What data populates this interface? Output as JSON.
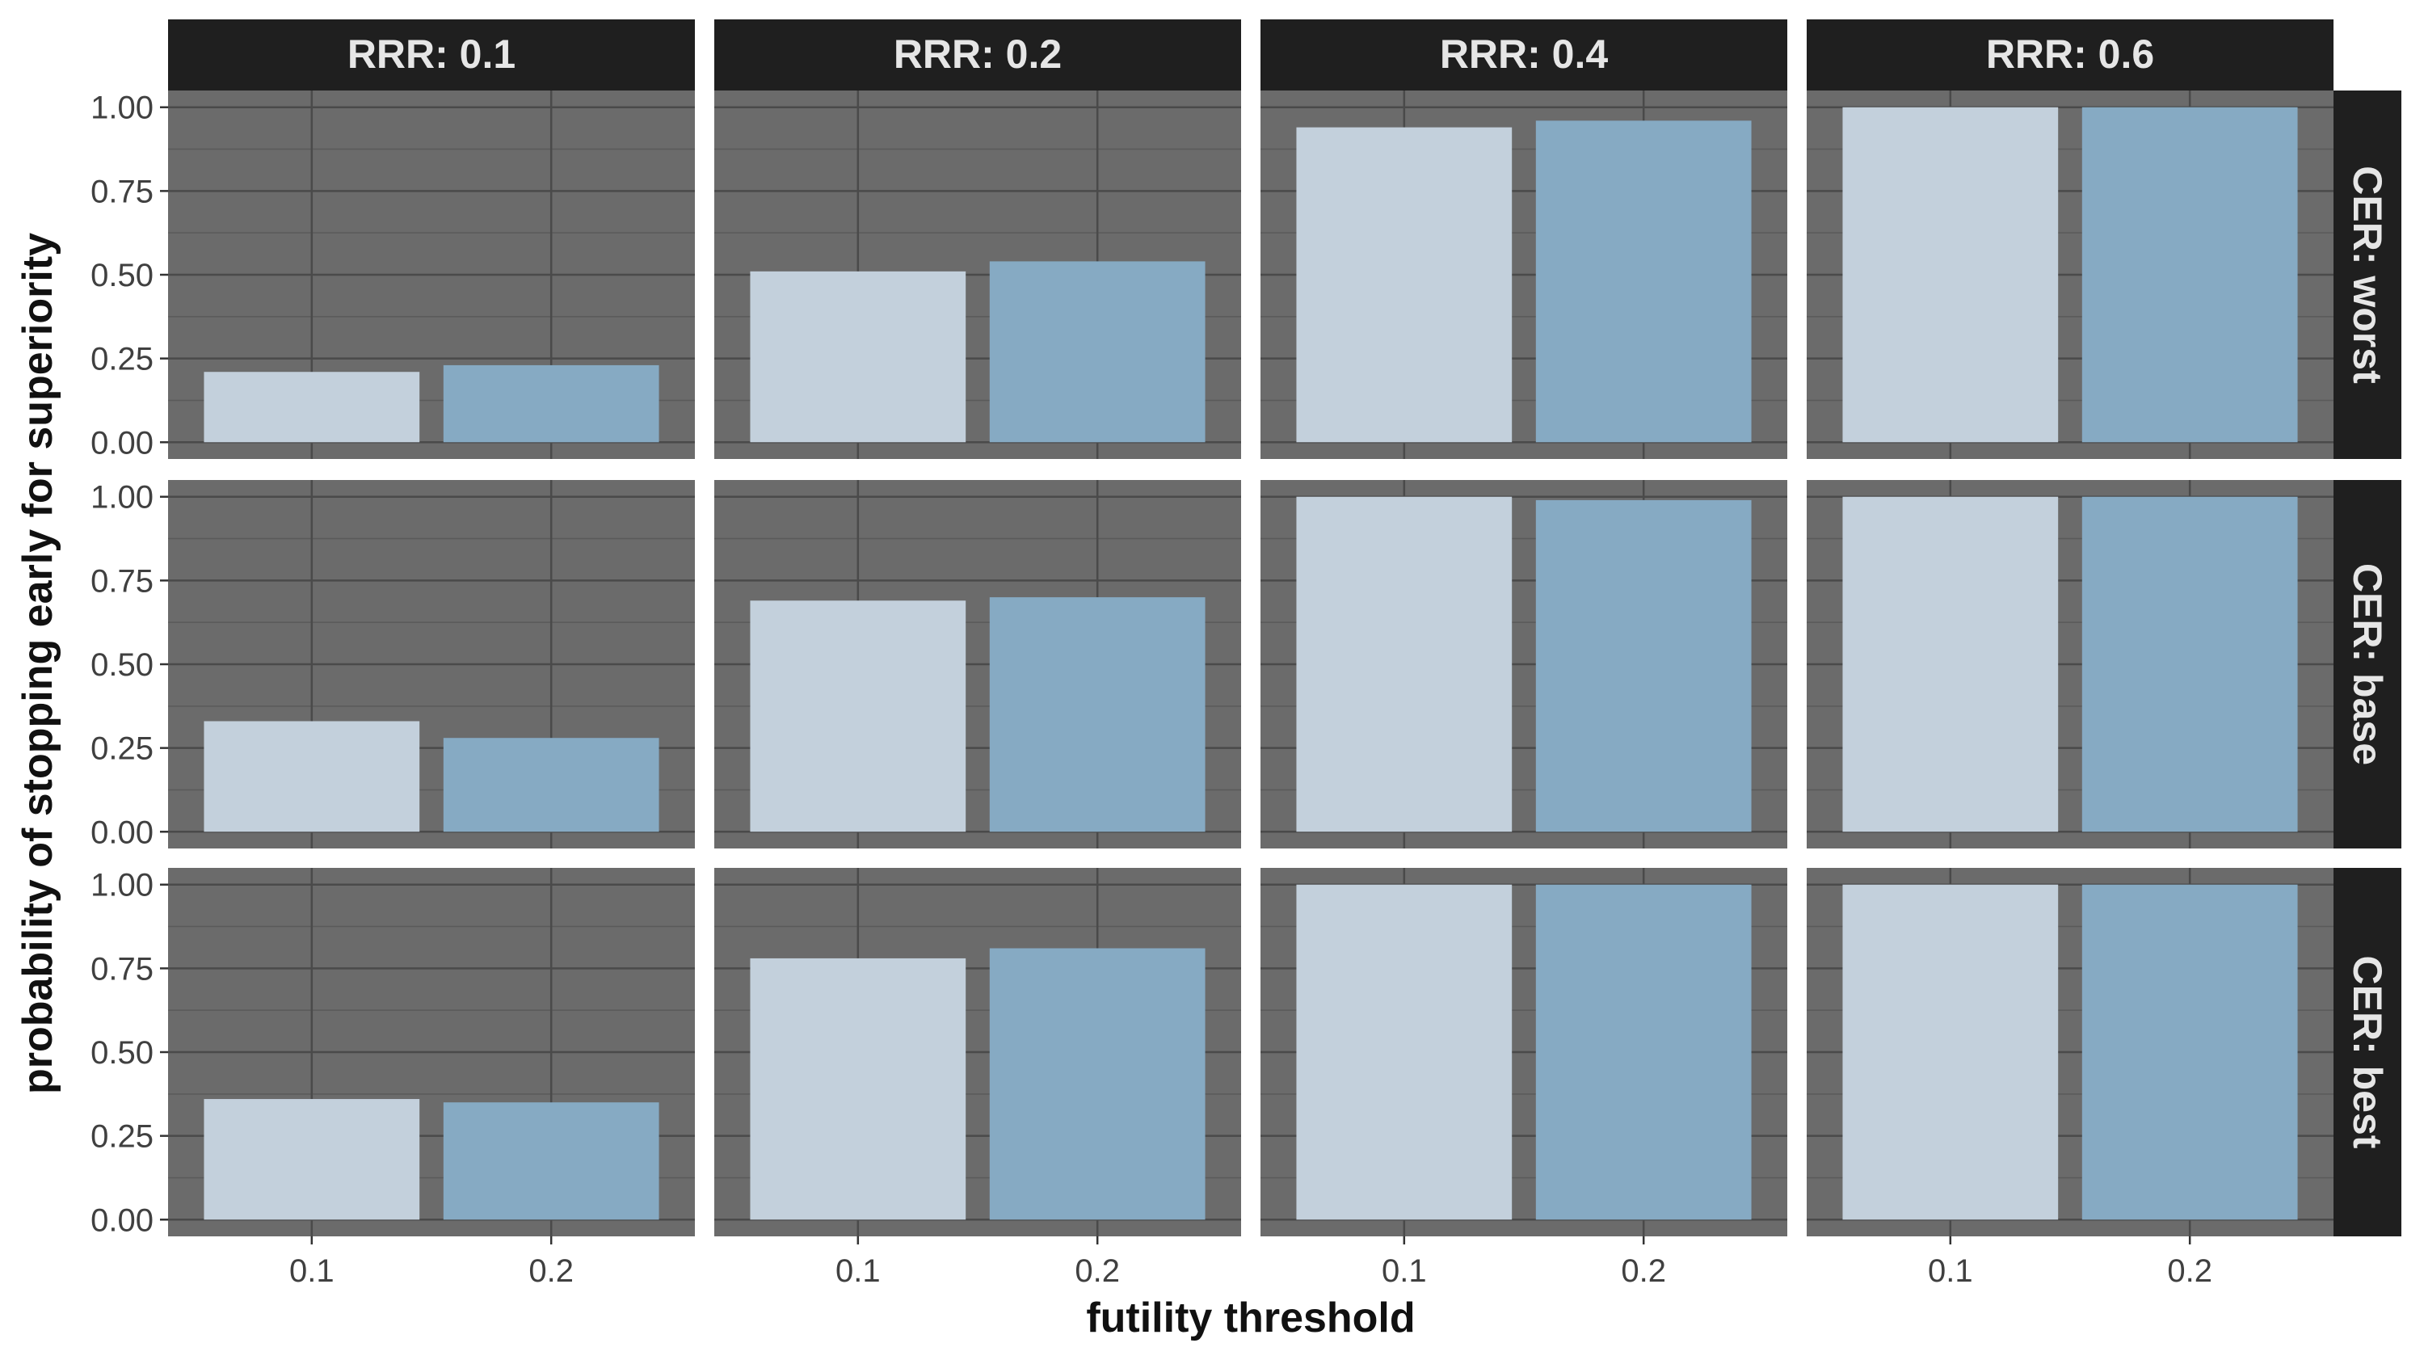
{
  "chart_data": {
    "type": "bar",
    "xlabel": "futility threshold",
    "ylabel": "probability of stopping early for superiority",
    "categories": [
      "0.1",
      "0.2"
    ],
    "ylim": [
      0,
      1
    ],
    "yticks": [
      "0.00",
      "0.25",
      "0.50",
      "0.75",
      "1.00"
    ],
    "col_facets": [
      "RRR: 0.1",
      "RRR: 0.2",
      "RRR: 0.4",
      "RRR: 0.6"
    ],
    "row_facets": [
      "CER: worst",
      "CER: base",
      "CER: best"
    ],
    "bar_colors": [
      "#c3d0dc",
      "#86aac3"
    ],
    "panel_background": "#6b6b6b",
    "strip_background": "#1f1f1f",
    "grid": true,
    "legend": "none",
    "values": [
      [
        [
          0.21,
          0.23
        ],
        [
          0.51,
          0.54
        ],
        [
          0.94,
          0.96
        ],
        [
          1.0,
          1.0
        ]
      ],
      [
        [
          0.33,
          0.28
        ],
        [
          0.69,
          0.7
        ],
        [
          1.0,
          0.99
        ],
        [
          1.0,
          1.0
        ]
      ],
      [
        [
          0.36,
          0.35
        ],
        [
          0.78,
          0.81
        ],
        [
          1.0,
          1.0
        ],
        [
          1.0,
          1.0
        ]
      ]
    ]
  }
}
